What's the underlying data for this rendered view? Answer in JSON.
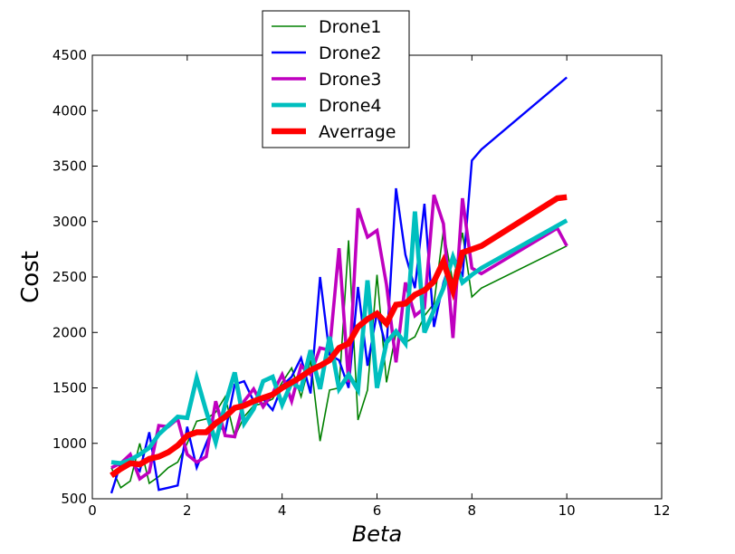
{
  "chart_data": {
    "type": "line",
    "xlabel": "Beta",
    "ylabel": "Cost",
    "xlim": [
      0,
      12
    ],
    "ylim": [
      500,
      4500
    ],
    "xticks": [
      "0",
      "2",
      "4",
      "6",
      "8",
      "10",
      "12"
    ],
    "yticks": [
      "500",
      "1000",
      "1500",
      "2000",
      "2500",
      "3000",
      "3500",
      "4000",
      "4500"
    ],
    "grid": false,
    "legend_position": "top-center",
    "series": [
      {
        "name": "Drone1",
        "color": "#008000",
        "x": [
          0.4,
          0.6,
          0.8,
          1.0,
          1.2,
          1.4,
          1.6,
          1.8,
          2.0,
          2.2,
          2.4,
          2.6,
          2.8,
          3.0,
          3.2,
          3.4,
          3.6,
          3.8,
          4.0,
          4.2,
          4.4,
          4.6,
          4.8,
          5.0,
          5.2,
          5.4,
          5.6,
          5.8,
          6.0,
          6.2,
          6.4,
          6.6,
          6.8,
          7.0,
          7.2,
          7.4,
          7.6,
          7.8,
          8.0,
          8.2,
          10.0
        ],
        "y": [
          780,
          600,
          660,
          1000,
          640,
          700,
          780,
          830,
          1000,
          1200,
          1220,
          1280,
          1420,
          1060,
          1240,
          1340,
          1360,
          1400,
          1550,
          1680,
          1420,
          1750,
          1020,
          1480,
          1500,
          2830,
          1210,
          1480,
          2520,
          1550,
          2000,
          1910,
          1960,
          2150,
          2260,
          2920,
          2450,
          2900,
          2320,
          2400,
          2780
        ]
      },
      {
        "name": "Drone2",
        "color": "#0000ff",
        "x": [
          0.4,
          0.6,
          0.8,
          1.0,
          1.2,
          1.4,
          1.6,
          1.8,
          2.0,
          2.2,
          2.4,
          2.6,
          2.8,
          3.0,
          3.2,
          3.4,
          3.6,
          3.8,
          4.0,
          4.2,
          4.4,
          4.6,
          4.8,
          5.0,
          5.2,
          5.4,
          5.6,
          5.8,
          6.0,
          6.2,
          6.4,
          6.6,
          6.8,
          7.0,
          7.2,
          7.4,
          7.6,
          7.8,
          8.0,
          8.2,
          10.0
        ],
        "y": [
          550,
          820,
          830,
          750,
          1100,
          580,
          600,
          620,
          1150,
          780,
          1000,
          1200,
          1100,
          1530,
          1560,
          1380,
          1400,
          1300,
          1520,
          1600,
          1770,
          1450,
          2500,
          1800,
          1750,
          1500,
          2410,
          1700,
          2180,
          1860,
          3300,
          2700,
          2400,
          3160,
          2050,
          2450,
          2700,
          2500,
          3550,
          3650,
          4300
        ]
      },
      {
        "name": "Drone3",
        "color": "#bf00bf",
        "x": [
          0.4,
          0.6,
          0.8,
          1.0,
          1.2,
          1.4,
          1.6,
          1.8,
          2.0,
          2.2,
          2.4,
          2.6,
          2.8,
          3.0,
          3.2,
          3.4,
          3.6,
          3.8,
          4.0,
          4.2,
          4.4,
          4.6,
          4.8,
          5.0,
          5.2,
          5.4,
          5.6,
          5.8,
          6.0,
          6.2,
          6.4,
          6.6,
          6.8,
          7.0,
          7.2,
          7.4,
          7.6,
          7.8,
          8.0,
          8.2,
          9.8,
          10.0
        ],
        "y": [
          780,
          820,
          900,
          680,
          740,
          1160,
          1150,
          1220,
          900,
          830,
          880,
          1380,
          1070,
          1060,
          1380,
          1490,
          1330,
          1450,
          1620,
          1380,
          1700,
          1620,
          1860,
          1840,
          2760,
          1550,
          3120,
          2860,
          2920,
          2430,
          1730,
          2450,
          2150,
          2220,
          3240,
          2980,
          1950,
          3210,
          2580,
          2530,
          2940,
          2780
        ]
      },
      {
        "name": "Drone4",
        "color": "#00bfbf",
        "x": [
          0.4,
          0.6,
          0.8,
          1.0,
          1.2,
          1.4,
          1.6,
          1.8,
          2.0,
          2.2,
          2.4,
          2.6,
          2.8,
          3.0,
          3.2,
          3.4,
          3.6,
          3.8,
          4.0,
          4.2,
          4.4,
          4.6,
          4.8,
          5.0,
          5.2,
          5.4,
          5.6,
          5.8,
          6.0,
          6.2,
          6.4,
          6.6,
          6.8,
          7.0,
          7.2,
          7.4,
          7.6,
          7.8,
          8.0,
          8.2,
          10.0
        ],
        "y": [
          830,
          820,
          850,
          900,
          960,
          1080,
          1160,
          1240,
          1230,
          1590,
          1290,
          1010,
          1350,
          1640,
          1180,
          1310,
          1560,
          1600,
          1350,
          1550,
          1490,
          1840,
          1490,
          1960,
          1490,
          1620,
          1480,
          2470,
          1500,
          1910,
          2010,
          1900,
          3090,
          2000,
          2200,
          2400,
          2680,
          2450,
          2520,
          2580,
          3010
        ]
      },
      {
        "name": "Averrage",
        "color": "#ff0000",
        "x": [
          0.4,
          0.6,
          0.8,
          1.0,
          1.2,
          1.4,
          1.6,
          1.8,
          2.0,
          2.2,
          2.4,
          2.6,
          2.8,
          3.0,
          3.2,
          3.4,
          3.6,
          3.8,
          4.0,
          4.2,
          4.4,
          4.6,
          4.8,
          5.0,
          5.2,
          5.4,
          5.6,
          5.8,
          6.0,
          6.2,
          6.4,
          6.6,
          6.8,
          7.0,
          7.2,
          7.4,
          7.6,
          7.8,
          8.0,
          8.2,
          9.8,
          10.0
        ],
        "y": [
          710,
          770,
          820,
          810,
          860,
          880,
          920,
          980,
          1070,
          1100,
          1100,
          1180,
          1240,
          1320,
          1340,
          1380,
          1410,
          1440,
          1500,
          1550,
          1600,
          1660,
          1700,
          1750,
          1860,
          1900,
          2050,
          2120,
          2170,
          2080,
          2250,
          2260,
          2340,
          2380,
          2460,
          2640,
          2380,
          2720,
          2750,
          2780,
          3210,
          3220
        ]
      }
    ]
  }
}
